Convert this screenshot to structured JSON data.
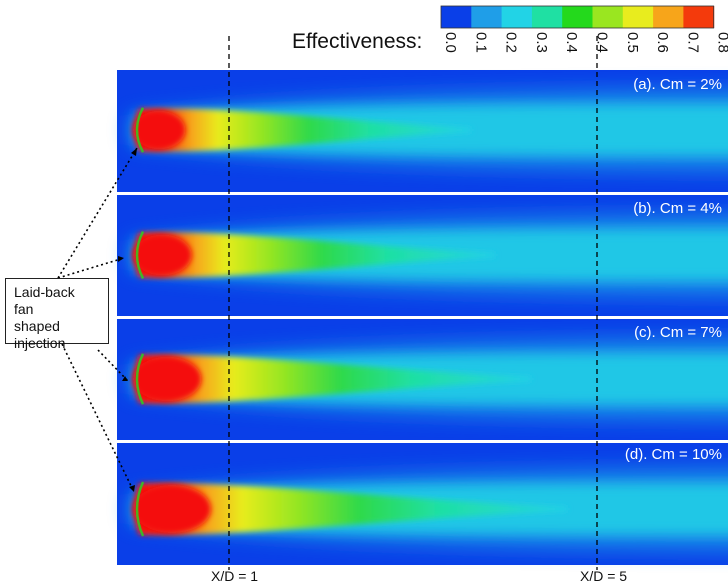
{
  "colorbar": {
    "title": "Effectiveness:",
    "ticks": [
      "0.0",
      "0.1",
      "0.2",
      "0.3",
      "0.4",
      "0.4",
      "0.5",
      "0.6",
      "0.7",
      "0.8"
    ],
    "colors": [
      "#0a3fe8",
      "#1f9ee8",
      "#22d3e6",
      "#1fe0a3",
      "#24d91c",
      "#9ae620",
      "#e8ec1e",
      "#f7a51a",
      "#f43a0c"
    ]
  },
  "panels": [
    {
      "label": "(a). Cm = 2%",
      "cm": 2
    },
    {
      "label": "(b). Cm = 4%",
      "cm": 4
    },
    {
      "label": "(c). Cm = 7%",
      "cm": 7
    },
    {
      "label": "(d). Cm = 10%",
      "cm": 10
    }
  ],
  "reference_lines": [
    {
      "label": "X/D = 1",
      "xd": 1
    },
    {
      "label": "X/D = 5",
      "xd": 5
    }
  ],
  "annotation": {
    "lines": [
      "Laid-back",
      "fan",
      "shaped",
      "injection"
    ]
  },
  "colors": {
    "background": "#0a3fe8",
    "separator": "#ffffff"
  }
}
